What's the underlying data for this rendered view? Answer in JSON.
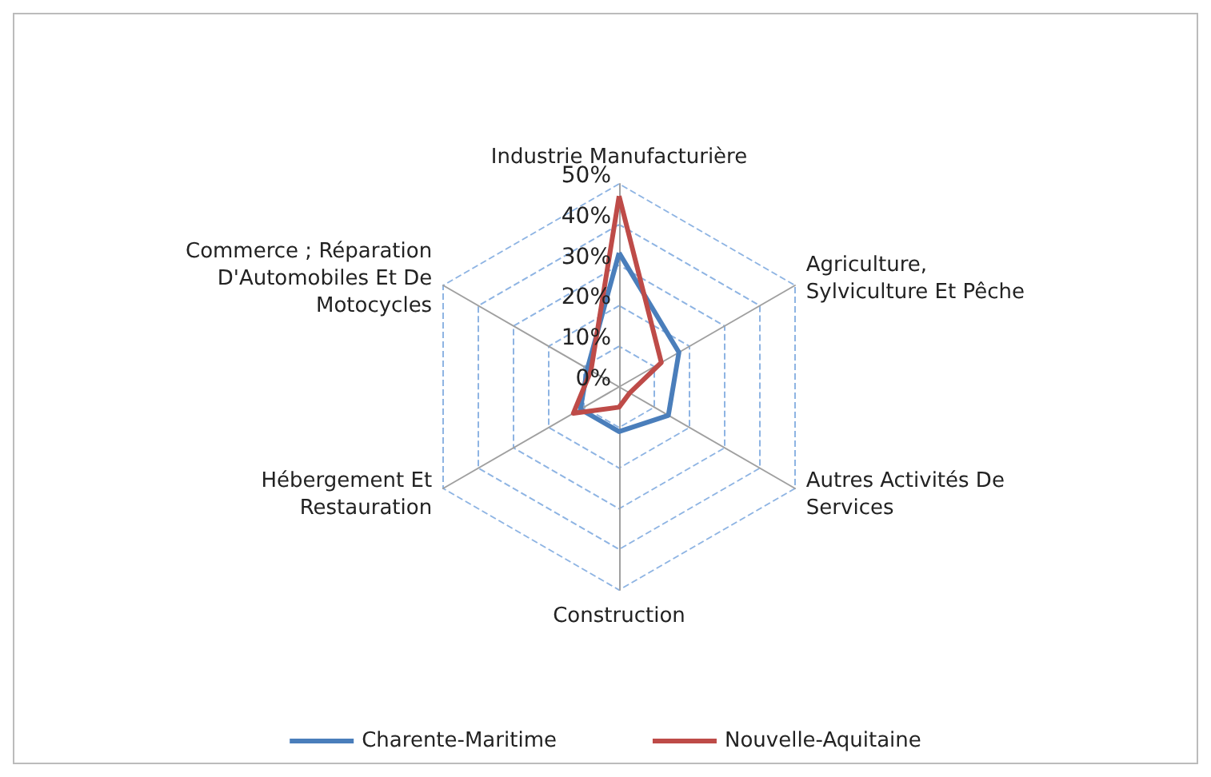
{
  "chart_data": {
    "type": "radar",
    "categories": [
      "Industrie Manufacturière",
      "Agriculture, Sylviculture Et Pêche",
      "Autres Activités De Services",
      "Construction",
      "Hébergement Et Restauration",
      "Commerce ; Réparation D'Automobiles Et De Motocycles"
    ],
    "series": [
      {
        "name": "Charente-Maritime",
        "color": "#4a7ebb",
        "values": [
          33,
          17,
          14,
          11,
          11,
          9
        ]
      },
      {
        "name": "Nouvelle-Aquitaine",
        "color": "#be4b48",
        "values": [
          47,
          12,
          3,
          5,
          13,
          8
        ]
      }
    ],
    "ylim": [
      0,
      50
    ],
    "yticks": [
      {
        "value": 0,
        "label": "0%"
      },
      {
        "value": 10,
        "label": "10%"
      },
      {
        "value": 20,
        "label": "20%"
      },
      {
        "value": 30,
        "label": "30%"
      },
      {
        "value": 40,
        "label": "40%"
      },
      {
        "value": 50,
        "label": "50%"
      }
    ],
    "grid": true,
    "legend": "bottom",
    "marker": "none",
    "line_style": "solid"
  }
}
